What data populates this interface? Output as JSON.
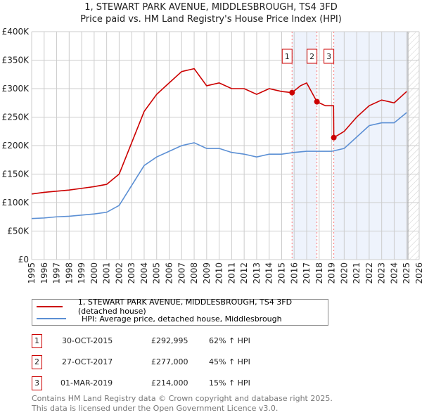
{
  "chart_data": {
    "type": "line",
    "title": "1, STEWART PARK AVENUE, MIDDLESBROUGH, TS4 3FD",
    "subtitle": "Price paid vs. HM Land Registry's House Price Index (HPI)",
    "xlim": [
      1995,
      2026
    ],
    "ylim": [
      0,
      400000
    ],
    "y_ticks": [
      {
        "v": 0,
        "l": "£0"
      },
      {
        "v": 50000,
        "l": "£50K"
      },
      {
        "v": 100000,
        "l": "£100K"
      },
      {
        "v": 150000,
        "l": "£150K"
      },
      {
        "v": 200000,
        "l": "£200K"
      },
      {
        "v": 250000,
        "l": "£250K"
      },
      {
        "v": 300000,
        "l": "£300K"
      },
      {
        "v": 350000,
        "l": "£350K"
      },
      {
        "v": 400000,
        "l": "£400K"
      }
    ],
    "x_ticks": [
      "1995",
      "1996",
      "1997",
      "1998",
      "1999",
      "2000",
      "2001",
      "2002",
      "2003",
      "2004",
      "2005",
      "2006",
      "2007",
      "2008",
      "2009",
      "2010",
      "2011",
      "2012",
      "2013",
      "2014",
      "2015",
      "2016",
      "2017",
      "2018",
      "2019",
      "2020",
      "2021",
      "2022",
      "2023",
      "2024",
      "2025",
      "2026"
    ],
    "grid": true,
    "series": [
      {
        "name": "1, STEWART PARK AVENUE, MIDDLESBROUGH, TS4 3FD (detached house)",
        "color": "#cc0000",
        "x": [
          1995,
          1996,
          1997,
          1998,
          1999,
          2000,
          2001,
          2002,
          2003,
          2004,
          2005,
          2006,
          2007,
          2008,
          2009,
          2010,
          2011,
          2012,
          2013,
          2014,
          2015,
          2015.83,
          2016.5,
          2017,
          2017.82,
          2018.5,
          2019.15,
          2019.17,
          2020,
          2021,
          2022,
          2023,
          2024,
          2025
        ],
        "y": [
          115000,
          118000,
          120000,
          122000,
          125000,
          128000,
          132000,
          150000,
          205000,
          260000,
          290000,
          310000,
          330000,
          335000,
          305000,
          310000,
          300000,
          300000,
          290000,
          300000,
          295000,
          292995,
          305000,
          310000,
          277000,
          270000,
          270000,
          214000,
          225000,
          250000,
          270000,
          280000,
          275000,
          295000
        ]
      },
      {
        "name": "HPI: Average price, detached house, Middlesbrough",
        "color": "#5b8fd4",
        "x": [
          1995,
          1996,
          1997,
          1998,
          1999,
          2000,
          2001,
          2002,
          2003,
          2004,
          2005,
          2006,
          2007,
          2008,
          2009,
          2010,
          2011,
          2012,
          2013,
          2014,
          2015,
          2016,
          2017,
          2018,
          2019,
          2020,
          2021,
          2022,
          2023,
          2024,
          2025
        ],
        "y": [
          72000,
          73000,
          75000,
          76000,
          78000,
          80000,
          83000,
          95000,
          130000,
          165000,
          180000,
          190000,
          200000,
          205000,
          195000,
          195000,
          188000,
          185000,
          180000,
          185000,
          185000,
          188000,
          190000,
          190000,
          190000,
          195000,
          215000,
          235000,
          240000,
          240000,
          258000
        ]
      }
    ],
    "sales": [
      {
        "n": "1",
        "x": 2015.83,
        "y": 292995,
        "date": "30-OCT-2015",
        "price": "£292,995",
        "hpi": "62% ↑ HPI"
      },
      {
        "n": "2",
        "x": 2017.82,
        "y": 277000,
        "date": "27-OCT-2017",
        "price": "£277,000",
        "hpi": "45% ↑ HPI"
      },
      {
        "n": "3",
        "x": 2019.17,
        "y": 214000,
        "date": "01-MAR-2019",
        "price": "£214,000",
        "hpi": "15% ↑ HPI"
      }
    ],
    "data_end": 2025.1,
    "legend_position": "below"
  },
  "footer": [
    "Contains HM Land Registry data © Crown copyright and database right 2025.",
    "This data is licensed under the Open Government Licence v3.0."
  ]
}
